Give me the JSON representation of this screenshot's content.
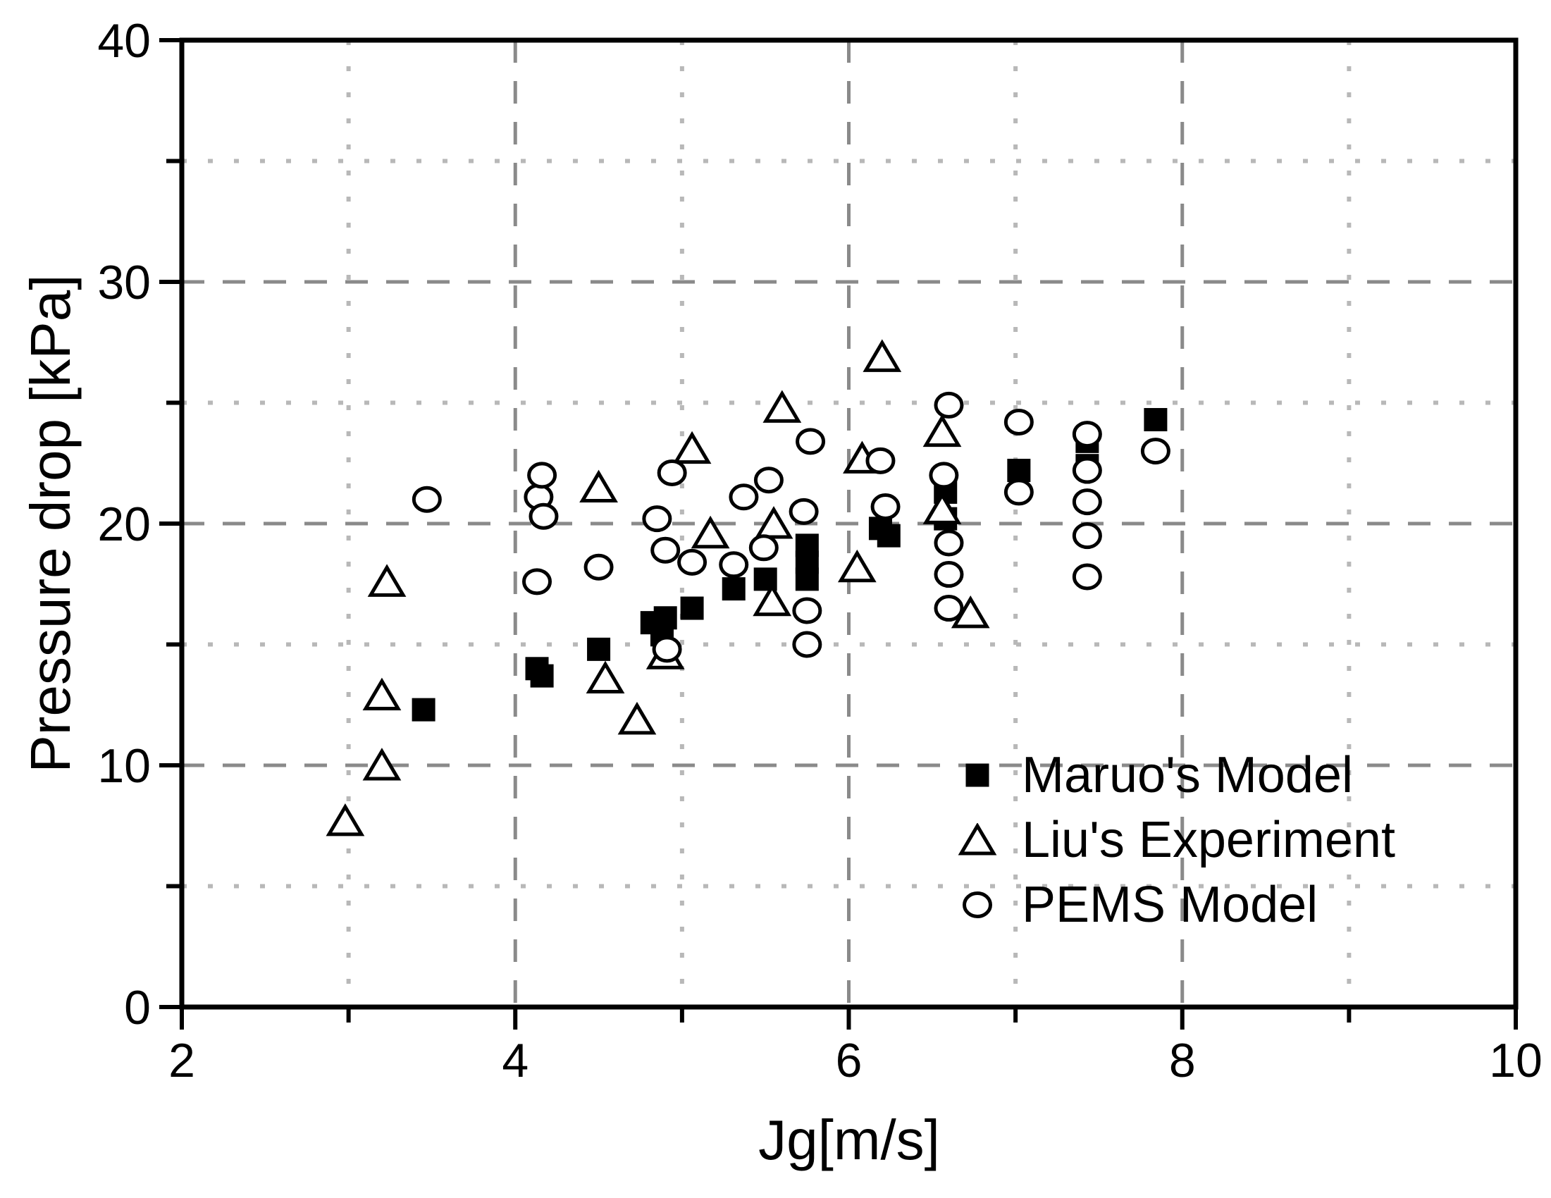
{
  "chart_data": {
    "type": "scatter",
    "title": "",
    "xlabel": "Jg[m/s]",
    "ylabel": "Pressure drop [kPa]",
    "xlim": [
      2,
      10
    ],
    "ylim": [
      0,
      40
    ],
    "xticks_major": [
      2,
      4,
      6,
      8,
      10
    ],
    "xticks_minor": [
      3,
      5,
      7,
      9
    ],
    "yticks_major": [
      0,
      10,
      20,
      30,
      40
    ],
    "yticks_minor": [
      5,
      15,
      25,
      35
    ],
    "grid": {
      "on": true,
      "dashed_x": [
        4,
        6,
        8
      ],
      "dotted_x": [
        3,
        5,
        7,
        9
      ],
      "dashed_y": [
        10,
        20,
        30
      ],
      "dotted_y": [
        5,
        15,
        25,
        35
      ],
      "dashed_color": "#8a8a8a",
      "dotted_color": "#b8b8b8"
    },
    "axis_color": "#000000",
    "background_color": "#ffffff",
    "legend_position": "lower right",
    "series": [
      {
        "name": "Maruo's Model",
        "marker": "filled-square",
        "color": "#000000",
        "points": [
          [
            3.45,
            12.3
          ],
          [
            4.13,
            14.0
          ],
          [
            4.16,
            13.7
          ],
          [
            4.5,
            14.8
          ],
          [
            4.82,
            15.9
          ],
          [
            4.88,
            15.4
          ],
          [
            4.9,
            16.1
          ],
          [
            5.06,
            16.5
          ],
          [
            5.31,
            17.3
          ],
          [
            5.5,
            17.7
          ],
          [
            5.75,
            17.7
          ],
          [
            5.75,
            18.4
          ],
          [
            5.75,
            19.1
          ],
          [
            6.19,
            19.8
          ],
          [
            6.24,
            19.5
          ],
          [
            6.58,
            20.2
          ],
          [
            6.58,
            21.3
          ],
          [
            7.02,
            22.2
          ],
          [
            7.43,
            22.4
          ],
          [
            7.43,
            23.4
          ],
          [
            7.84,
            24.3
          ]
        ]
      },
      {
        "name": "Liu's Experiment",
        "marker": "open-triangle",
        "color": "#000000",
        "points": [
          [
            2.98,
            7.7
          ],
          [
            3.2,
            10.0
          ],
          [
            3.2,
            12.9
          ],
          [
            3.23,
            17.6
          ],
          [
            4.5,
            21.5
          ],
          [
            4.54,
            13.6
          ],
          [
            4.73,
            11.9
          ],
          [
            4.9,
            14.6
          ],
          [
            5.06,
            23.1
          ],
          [
            5.17,
            19.6
          ],
          [
            5.54,
            16.8
          ],
          [
            5.55,
            20.0
          ],
          [
            5.6,
            24.8
          ],
          [
            6.05,
            18.2
          ],
          [
            6.08,
            22.7
          ],
          [
            6.2,
            26.9
          ],
          [
            6.56,
            20.6
          ],
          [
            6.56,
            23.8
          ],
          [
            6.73,
            16.3
          ]
        ]
      },
      {
        "name": "PEMS Model",
        "marker": "open-circle",
        "color": "#000000",
        "points": [
          [
            3.47,
            21.0
          ],
          [
            4.13,
            17.6
          ],
          [
            4.14,
            21.1
          ],
          [
            4.16,
            22.0
          ],
          [
            4.17,
            20.3
          ],
          [
            4.5,
            18.2
          ],
          [
            4.85,
            20.2
          ],
          [
            4.9,
            18.9
          ],
          [
            4.91,
            14.8
          ],
          [
            4.94,
            22.1
          ],
          [
            5.06,
            18.4
          ],
          [
            5.31,
            18.3
          ],
          [
            5.37,
            21.1
          ],
          [
            5.49,
            19.0
          ],
          [
            5.52,
            21.8
          ],
          [
            5.73,
            20.5
          ],
          [
            5.75,
            15.0
          ],
          [
            5.75,
            16.4
          ],
          [
            5.77,
            23.4
          ],
          [
            6.19,
            22.6
          ],
          [
            6.22,
            20.7
          ],
          [
            6.57,
            22.0
          ],
          [
            6.6,
            16.5
          ],
          [
            6.6,
            17.9
          ],
          [
            6.6,
            19.2
          ],
          [
            6.6,
            24.9
          ],
          [
            7.02,
            21.3
          ],
          [
            7.02,
            24.2
          ],
          [
            7.43,
            17.8
          ],
          [
            7.43,
            19.5
          ],
          [
            7.43,
            20.9
          ],
          [
            7.43,
            22.2
          ],
          [
            7.43,
            23.7
          ],
          [
            7.84,
            23.0
          ]
        ]
      }
    ]
  }
}
